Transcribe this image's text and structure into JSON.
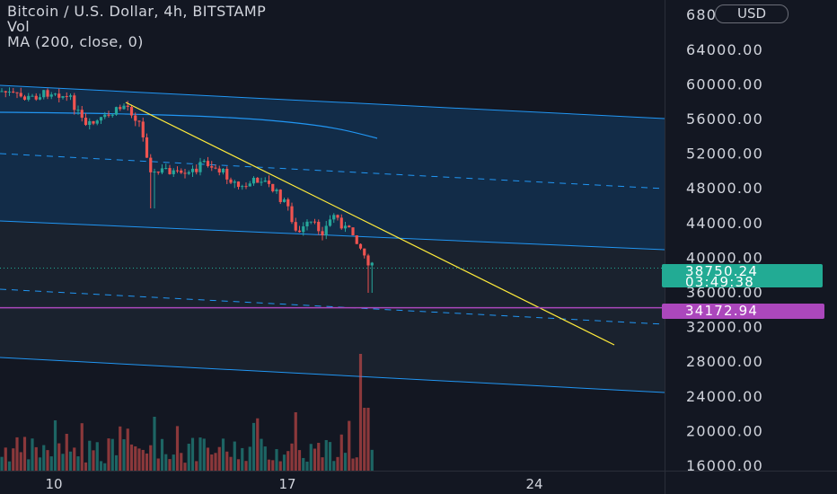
{
  "legend": {
    "symbol_line": "Bitcoin / U.S. Dollar, 4h, BITSTAMP",
    "volume_label": "Vol",
    "ma_label": "MA (200, close, 0)"
  },
  "currency_button": "USD",
  "last_price": {
    "value": "38750.24",
    "countdown": "03:49:38"
  },
  "level_label": "34172.94",
  "colors": {
    "background": "#131722",
    "up_candle": "#26a69a",
    "down_candle": "#ef5350",
    "channel_line": "#2196f3",
    "trend_line": "#ffeb3b",
    "level_line": "#ab47bc",
    "price_badge": "#22ab94"
  },
  "chart_data": {
    "type": "candlestick",
    "timeframe": "4h",
    "y_tick_labels": [
      "68000.00",
      "64000.00",
      "60000.00",
      "56000.00",
      "52000.00",
      "48000.00",
      "44000.00",
      "40000.00",
      "36000.00",
      "32000.00",
      "28000.00",
      "24000.00",
      "20000.00",
      "16000.00"
    ],
    "x_tick_labels": [
      "10",
      "17",
      "24"
    ],
    "ylim": [
      16000,
      68000
    ],
    "last_close": 38750.24,
    "horizontal_level": 34172.94
  }
}
